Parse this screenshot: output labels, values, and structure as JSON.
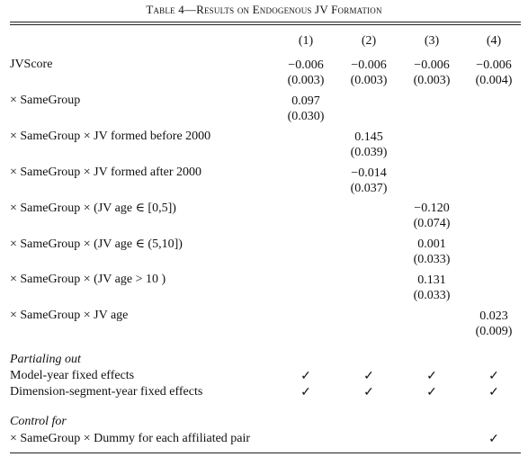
{
  "table": {
    "title": "Table 4—Results on Endogenous JV Formation",
    "columns": [
      "(1)",
      "(2)",
      "(3)",
      "(4)"
    ],
    "rows": [
      {
        "label": "JVScore",
        "values": [
          [
            "−0.006",
            "(0.003)"
          ],
          [
            "−0.006",
            "(0.003)"
          ],
          [
            "−0.006",
            "(0.003)"
          ],
          [
            "−0.006",
            "(0.004)"
          ]
        ]
      },
      {
        "label": "× SameGroup",
        "values": [
          [
            "0.097",
            "(0.030)"
          ],
          null,
          null,
          null
        ]
      },
      {
        "label": "× SameGroup × JV formed before 2000",
        "values": [
          null,
          [
            "0.145",
            "(0.039)"
          ],
          null,
          null
        ]
      },
      {
        "label": "× SameGroup × JV formed after 2000",
        "values": [
          null,
          [
            "−0.014",
            "(0.037)"
          ],
          null,
          null
        ]
      },
      {
        "label": "× SameGroup × (JV age ∈ [0,5])",
        "values": [
          null,
          null,
          [
            "−0.120",
            "(0.074)"
          ],
          null
        ]
      },
      {
        "label": "× SameGroup × (JV age ∈ (5,10])",
        "values": [
          null,
          null,
          [
            "0.001",
            "(0.033)"
          ],
          null
        ]
      },
      {
        "label": "× SameGroup × (JV age  >  10 )",
        "values": [
          null,
          null,
          [
            "0.131",
            "(0.033)"
          ],
          null
        ]
      },
      {
        "label": "× SameGroup × JV age",
        "values": [
          null,
          null,
          null,
          [
            "0.023",
            "(0.009)"
          ]
        ]
      }
    ],
    "partialing": {
      "heading": "Partialing out",
      "items": [
        {
          "label": "Model-year fixed effects",
          "checks": [
            true,
            true,
            true,
            true
          ]
        },
        {
          "label": "Dimension-segment-year fixed effects",
          "checks": [
            true,
            true,
            true,
            true
          ]
        }
      ]
    },
    "control": {
      "heading": "Control for",
      "items": [
        {
          "label": "× SameGroup × Dummy for each affiliated pair",
          "checks": [
            false,
            false,
            false,
            true
          ]
        }
      ]
    },
    "check_glyph": "✓"
  }
}
